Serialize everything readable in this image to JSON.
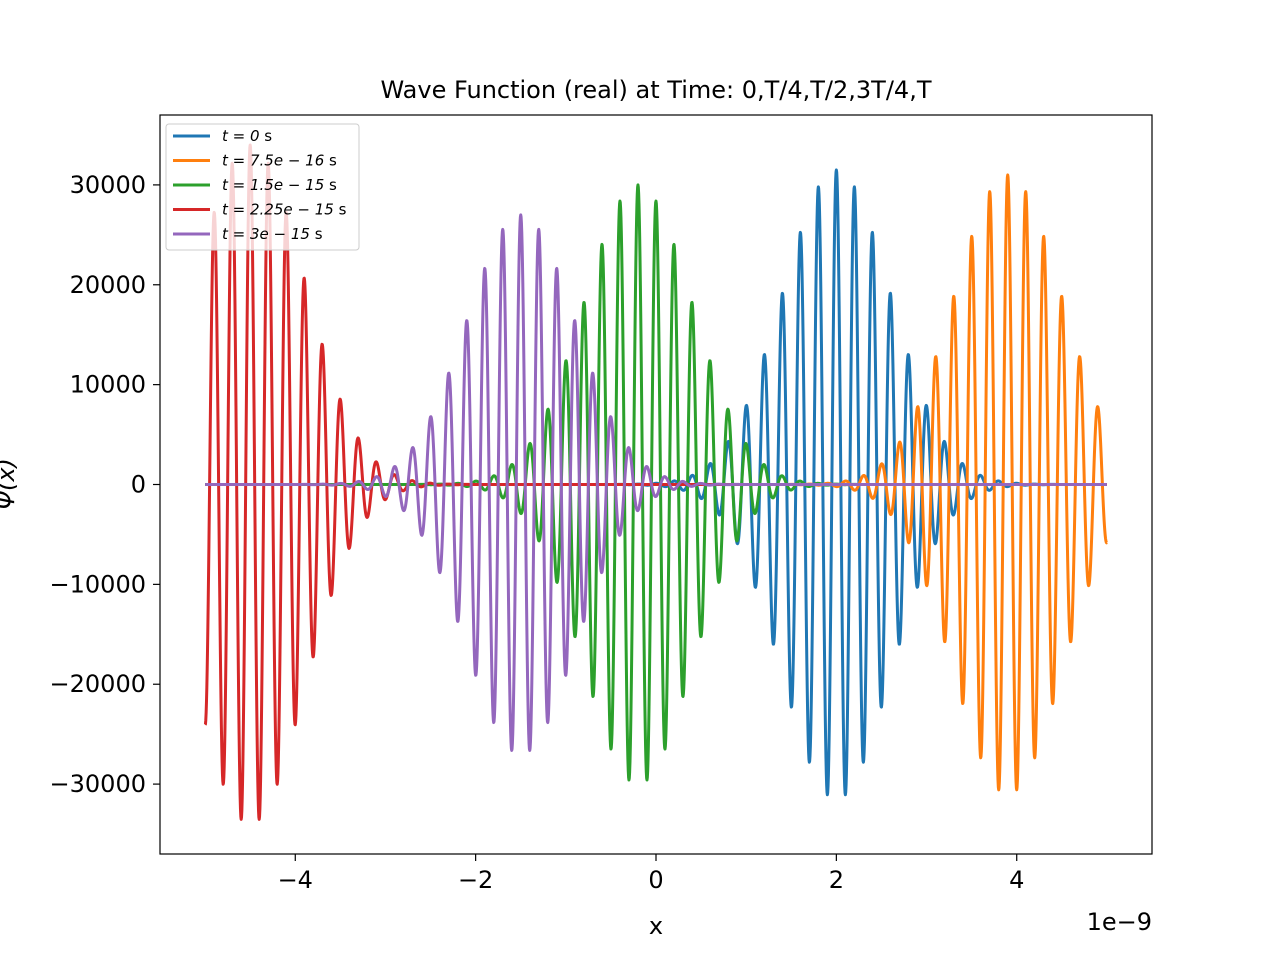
{
  "chart_data": {
    "type": "line",
    "title": "Wave Function (real) at Time: 0,T/4,T/2,3T/4,T",
    "xlabel": "x",
    "ylabel": "Ψ(x)",
    "x_offset_label": "1e−9",
    "xlim": [
      -5.5e-09,
      5.5e-09
    ],
    "ylim": [
      -37000,
      37000
    ],
    "x_range": [
      -5e-09,
      5e-09
    ],
    "x_ticks": [
      -4e-09,
      -2e-09,
      0,
      2e-09,
      4e-09
    ],
    "x_tick_labels": [
      "−4",
      "−2",
      "0",
      "2",
      "4"
    ],
    "y_ticks": [
      -30000,
      -20000,
      -10000,
      0,
      10000,
      20000,
      30000
    ],
    "y_tick_labels": [
      "−30000",
      "−20000",
      "−10000",
      "0",
      "10000",
      "20000",
      "30000"
    ],
    "grid": false,
    "legend_position": "top-left",
    "series": [
      {
        "name": "t = 0 s",
        "label_prefix": "t",
        "label_value": "0",
        "label_unit": "s",
        "color": "#1f77b4",
        "packet_center": 2e-09,
        "peak_amplitude": 31500,
        "envelope_width": 8.5e-10,
        "wavelength": 2e-10
      },
      {
        "name": "t = 7.5e−16 s",
        "label_prefix": "t",
        "label_value": "7.5e − 16",
        "label_unit": "s",
        "color": "#ff7f0e",
        "packet_center": 3.9e-09,
        "peak_amplitude": 31000,
        "envelope_width": 8.5e-10,
        "wavelength": 2e-10
      },
      {
        "name": "t = 1.5e−15 s",
        "label_prefix": "t",
        "label_value": "1.5e − 15",
        "label_unit": "s",
        "color": "#2ca02c",
        "packet_center": -2e-10,
        "peak_amplitude": 30000,
        "envelope_width": 8.5e-10,
        "wavelength": 2e-10
      },
      {
        "name": "t = 2.25e−15 s",
        "label_prefix": "t",
        "label_value": "2.25e − 15",
        "label_unit": "s",
        "color": "#d62728",
        "packet_center": -4.5e-09,
        "peak_amplitude": 34000,
        "envelope_width": 8.5e-10,
        "wavelength": 2e-10
      },
      {
        "name": "t = 3e−15 s",
        "label_prefix": "t",
        "label_value": "3e − 15",
        "label_unit": "s",
        "color": "#9467bd",
        "packet_center": -1.5e-09,
        "peak_amplitude": 27000,
        "envelope_width": 8.5e-10,
        "wavelength": 2e-10
      }
    ]
  }
}
